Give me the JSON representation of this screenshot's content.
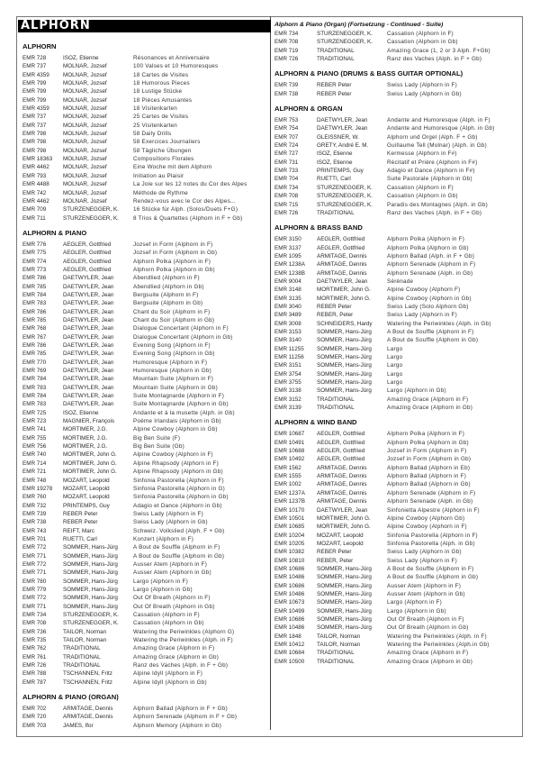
{
  "banner": "ALPHORN",
  "columns": [
    {
      "sections": [
        {
          "title": "ALPHORN",
          "rows": [
            [
              "EMR 728",
              "ISOZ, Etienne",
              "Résonances et Anniversaire"
            ],
            [
              "EMR 737",
              "MOLNAR, Jozsef",
              "100 Valses et 10 Humoresques"
            ],
            [
              "EMR 4359",
              "MOLNAR, Jozsef",
              "18 Cartes de Visites"
            ],
            [
              "EMR 799",
              "MOLNAR, Jozsef",
              "18 Humorous Pieces"
            ],
            [
              "EMR 799",
              "MOLNAR, Jozsef",
              "18 Lustige Stücke"
            ],
            [
              "EMR 799",
              "MOLNAR, Jozsef",
              "18 Pièces Amusantes"
            ],
            [
              "EMR 4359",
              "MOLNAR, Jozsef",
              "18 Visitenkarten"
            ],
            [
              "EMR 737",
              "MOLNAR, Jozsef",
              "25 Cartes de Visites"
            ],
            [
              "EMR 737",
              "MOLNAR, Jozsef",
              "25 Visitenkarten"
            ],
            [
              "EMR 798",
              "MOLNAR, Jozsef",
              "58 Daily Drills"
            ],
            [
              "EMR 798",
              "MOLNAR, Jozsef",
              "58 Exercices Journaliers"
            ],
            [
              "EMR 798",
              "MOLNAR, Jozsef",
              "58 Tägliche Übungen"
            ],
            [
              "EMR 18363",
              "MOLNAR, Jozsef",
              "Compositions Florales"
            ],
            [
              "EMR 4462",
              "MOLNAR, Jozsef",
              "Eine Woche mit dem Alphorn"
            ],
            [
              "EMR 793",
              "MOLNAR, Jozsef",
              "Initiation au Plaisir"
            ],
            [
              "EMR 4488",
              "MOLNAR, Jozsef",
              "La Joie sur les 12 notes du Cor des Alpes"
            ],
            [
              "EMR 742",
              "MOLNAR, Jozsef",
              "Méthode de Rythme"
            ],
            [
              "EMR 4462",
              "MOLNAR, Jozsef",
              "Rendez-vous avec le Cor des Alpes..."
            ],
            [
              "EMR 709",
              "STURZENEGGER, K.",
              "16 Stücke für Alph. (Solos/Duets F+G)"
            ],
            [
              "EMR 711",
              "STURZENEGGER, K.",
              "8 Trios & Quartettes (Alphorn in F + Gb)"
            ]
          ]
        },
        {
          "title": "ALPHORN & PIANO",
          "rows": [
            [
              "EMR 776",
              "AEGLER, Gottfried",
              "Jozsef in Form (Alphorn in F)"
            ],
            [
              "EMR 775",
              "AEGLER, Gottfried",
              "Jozsef in Form (Alphorn in Gb)"
            ],
            [
              "EMR 774",
              "AEGLER, Gottfried",
              "Alphorn Polka (Alphorn in F)"
            ],
            [
              "EMR 773",
              "AEGLER, Gottfried",
              "Alphorn Polka (Alphorn in Gb)"
            ],
            [
              "EMR 786",
              "DAETWYLER, Jean",
              "Abendlied (Alphorn in F)"
            ],
            [
              "EMR 785",
              "DAETWYLER, Jean",
              "Abendlied (Alphorn in Gb)"
            ],
            [
              "EMR 784",
              "DAETWYLER, Jean",
              "Bergsuite (Alphorn in F)"
            ],
            [
              "EMR 783",
              "DAETWYLER, Jean",
              "Bergsuite (Alphorn in Gb)"
            ],
            [
              "EMR 786",
              "DAETWYLER, Jean",
              "Chant du Soir (Alphorn in F)"
            ],
            [
              "EMR 785",
              "DAETWYLER, Jean",
              "Chant du Soir (Alphorn in Gb)"
            ],
            [
              "EMR 768",
              "DAETWYLER, Jean",
              "Dialogue Concertant (Alphorn in F)"
            ],
            [
              "EMR 767",
              "DAETWYLER, Jean",
              "Dialogue Concertant (Alphorn in Gb)"
            ],
            [
              "EMR 786",
              "DAETWYLER, Jean",
              "Evening Song (Alphorn in F)"
            ],
            [
              "EMR 785",
              "DAETWYLER, Jean",
              "Evening Song (Alphorn in Gb)"
            ],
            [
              "EMR 770",
              "DAETWYLER, Jean",
              "Humoresque (Alphorn in F)"
            ],
            [
              "EMR 769",
              "DAETWYLER, Jean",
              "Humoresque (Alphorn in Gb)"
            ],
            [
              "EMR 784",
              "DAETWYLER, Jean",
              "Mountain Suite (Alphorn in F)"
            ],
            [
              "EMR 783",
              "DAETWYLER, Jean",
              "Mountain Suite (Alphorn in Gb)"
            ],
            [
              "EMR 784",
              "DAETWYLER, Jean",
              "Suite Montagnarde (Alphorn in F)"
            ],
            [
              "EMR 783",
              "DAETWYLER, Jean",
              "Suite Montagnarde (Alphorn in Gb)"
            ],
            [
              "EMR 725",
              "ISOZ, Etienne",
              "Andante et à la musette (Alph. in Gb)"
            ],
            [
              "EMR 723",
              "MAGNIER, François",
              "Poème Irlandais (Alphorn in Gb)"
            ],
            [
              "EMR 741",
              "MORTIMER, J.G.",
              "Alpine Cowboy (Alphorn in Gb)"
            ],
            [
              "EMR 755",
              "MORTIMER, J.G.",
              "Big Ben Suite (F)"
            ],
            [
              "EMR 756",
              "MORTIMER, J.G.",
              "Big Ben Suite (Gb)"
            ],
            [
              "EMR 740",
              "MORTIMER, John G.",
              "Alpine Cowboy (Alphorn in F)"
            ],
            [
              "EMR 714",
              "MORTIMER, John G.",
              "Alpine Rhapsody (Alphorn in F)"
            ],
            [
              "EMR 721",
              "MORTIMER, John G.",
              "Alpine Rhapsody (Alphorn in Gb)"
            ],
            [
              "EMR 748",
              "MOZART, Leopold",
              "Sinfonia Pastorella (Alphorn in F)"
            ],
            [
              "EMR 19278",
              "MOZART, Leopold",
              "Sinfonia Pastorella (Alphorn in G)"
            ],
            [
              "EMR 760",
              "MOZART, Leopold",
              "Sinfonia Pastorella (Alphorn in Gb)"
            ],
            [
              "EMR 732",
              "PRINTEMPS, Guy",
              "Adagio et Dance (Alphorn in Gb)"
            ],
            [
              "EMR 739",
              "REBER Peter",
              "Swiss Lady (Alphorn in F)"
            ],
            [
              "EMR 738",
              "REBER Peter",
              "Swiss Lady (Alphorn in Gb)"
            ],
            [
              "EMR 743",
              "REIFT, Marc",
              "Schweiz. Volkslied (Alph. F + Gb)"
            ],
            [
              "EMR 701",
              "RUETTI, Carl",
              "Konzert (Alphorn in F)"
            ],
            [
              "EMR 772",
              "SOMMER, Hans-Jürg",
              "A Bout de Souffle (Alphorn in F)"
            ],
            [
              "EMR 771",
              "SOMMER, Hans-Jürg",
              "A Bout de Souffle (Alphorn in Gb)"
            ],
            [
              "EMR 772",
              "SOMMER, Hans-Jürg",
              "Ausser Atem (Alphorn in F)"
            ],
            [
              "EMR 771",
              "SOMMER, Hans-Jürg",
              "Ausser Atem (Alphorn in Gb)"
            ],
            [
              "EMR 780",
              "SOMMER, Hans-Jürg",
              "Largo (Alphorn in F)"
            ],
            [
              "EMR 779",
              "SOMMER, Hans-Jürg",
              "Largo (Alphorn in Gb)"
            ],
            [
              "EMR 772",
              "SOMMER, Hans-Jürg",
              "Out Of Breath (Alphorn in F)"
            ],
            [
              "EMR 771",
              "SOMMER, Hans-Jürg",
              "Out Of Breath (Alphorn in Gb)"
            ],
            [
              "EMR 734",
              "STURZENEGGER, K.",
              "Cassation (Alphorn in F)"
            ],
            [
              "EMR 708",
              "STURZENEGGER, K.",
              "Cassation (Alphorn in Gb)"
            ],
            [
              "EMR 736",
              "TAILOR, Norman",
              "Watering the Periwinkles (Alphorn G)"
            ],
            [
              "EMR 735",
              "TAILOR, Norman",
              "Watering the Periwinkles (Alph. in F)"
            ],
            [
              "EMR 762",
              "TRADITIONAL",
              "Amazing Grace (Alphorn in F)"
            ],
            [
              "EMR 761",
              "TRADITIONAL",
              "Amazing Grace (Alphorn in Gb)"
            ],
            [
              "EMR 726",
              "TRADITIONAL",
              "Ranz des Vaches (Alph. in F + Gb)"
            ],
            [
              "EMR 788",
              "TSCHANNEN, Fritz",
              "Alpine Idyll (Alphorn in F)"
            ],
            [
              "EMR 787",
              "TSCHANNEN, Fritz",
              "Alpine Idyll (Alphorn in Gb)"
            ]
          ]
        },
        {
          "title": "ALPHORN & PIANO (ORGAN)",
          "rows": [
            [
              "EMR 702",
              "ARMITAGE, Dennis",
              "Alphorn Ballad (Alphorn in F + Gb)"
            ],
            [
              "EMR 720",
              "ARMITAGE, Dennis",
              "Alphorn Serenade (Alphorn in F + Gb)"
            ],
            [
              "EMR 703",
              "JAMES, Ifor",
              "Alphorn Memory (Alphorn in Gb)"
            ]
          ]
        }
      ]
    },
    {
      "sections": [
        {
          "title": "Alphorn & Piano (Organ) (Fortsetzung - Continued - Suite)",
          "italic": true,
          "rows": [
            [
              "EMR 734",
              "STURZENEGGER, K.",
              "Cassation (Alphorn in F)"
            ],
            [
              "EMR 708",
              "STURZENEGGER, K.",
              "Cassation (Alphorn in Gb)"
            ],
            [
              "EMR 719",
              "TRADITIONAL",
              "Amazing Grace (1, 2 or 3 Alph. F+Gb)"
            ],
            [
              "EMR 726",
              "TRADITIONAL",
              "Ranz des Vaches (Alph. in F + Gb)"
            ]
          ]
        },
        {
          "title": "ALPHORN & PIANO (DRUMS & BASS GUITAR OPTIONAL)",
          "rows": [
            [
              "EMR 739",
              "REBER Peter",
              "Swiss Lady (Alphorn in F)"
            ],
            [
              "EMR 738",
              "REBER Peter",
              "Swiss Lady (Alphorn in Gb)"
            ]
          ]
        },
        {
          "title": "ALPHORN & ORGAN",
          "rows": [
            [
              "EMR 753",
              "DAETWYLER, Jean",
              "Andante and Humoresque (Alph. in F)"
            ],
            [
              "EMR 754",
              "DAETWYLER, Jean",
              "Andante and Humoresque (Alph. in Gb)"
            ],
            [
              "EMR 707",
              "GLEISSNER, W.",
              "Alphorn und Orgel (Alph. F + Gb)"
            ],
            [
              "EMR 724",
              "GRETY, André E. M.",
              "Guillaume Tell (Molnar) (Alph. in Gb)"
            ],
            [
              "EMR 727",
              "ISOZ, Etienne",
              "Kermesse (Alphorn in F#)"
            ],
            [
              "EMR 731",
              "ISOZ, Etienne",
              "Récitatif et Prière (Alphorn in F#)"
            ],
            [
              "EMR 733",
              "PRINTEMPS, Guy",
              "Adagio et Dance (Alphorn in F#)"
            ],
            [
              "EMR 704",
              "RUETTI, Carl",
              "Suite Pastorale (Alphorn in Gb)"
            ],
            [
              "EMR 734",
              "STURZENEGGER, K.",
              "Cassation (Alphorn in F)"
            ],
            [
              "EMR 708",
              "STURZENEGGER, K.",
              "Cassation (Alphorn in Gb)"
            ],
            [
              "EMR 715",
              "STURZENEGGER, K.",
              "Paradis des Montagnes (Alph. in Gb)"
            ],
            [
              "EMR 726",
              "TRADITIONAL",
              "Ranz des Vaches (Alph. in F + Gb)"
            ]
          ]
        },
        {
          "title": "ALPHORN & BRASS BAND",
          "rows": [
            [
              "EMR 3150",
              "AEGLER, Gottfried",
              "Alphorn Polka (Alphorn in F)"
            ],
            [
              "EMR 3137",
              "AEGLER, Gottfried",
              "Alphorn Polka (Alphorn in Gb)"
            ],
            [
              "EMR 1095",
              "ARMITAGE, Dennis",
              "Alphorn Ballad (Alph. in F + Gb)"
            ],
            [
              "EMR 1238A",
              "ARMITAGE, Dennis",
              "Alphorn Serenade (Alphorn in F)"
            ],
            [
              "EMR 1238B",
              "ARMITAGE, Dennis",
              "Alphorn Serenade (Alph. in Gb)"
            ],
            [
              "EMR 9004",
              "DAETWYLER, Jean",
              "Sérénade"
            ],
            [
              "EMR 3148",
              "MORTIMER, John G.",
              "Alpine Cowboy (Alphorn F)"
            ],
            [
              "EMR 3135",
              "MORTIMER, John G.",
              "Alpine Cowboy (Alphorn in Gb)"
            ],
            [
              "EMR 3040",
              "REBER Peter",
              "Swiss Lady (Solo Alphorn Gb)"
            ],
            [
              "EMR 3489",
              "REBER, Peter",
              "Swiss Lady (Alphorn in F)"
            ],
            [
              "EMR 3008",
              "SCHNEIDERS, Hardy",
              "Watering the Periwinkles (Alph. in Gb)"
            ],
            [
              "EMR 3153",
              "SOMMER, Hans-Jürg",
              "A Bout de Souffle (Alphorn in F)"
            ],
            [
              "EMR 3140",
              "SOMMER, Hans-Jürg",
              "A Bout de Souffle (Alphorn in Gb)"
            ],
            [
              "EMR 11255",
              "SOMMER, Hans-Jürg",
              "Largo"
            ],
            [
              "EMR 11256",
              "SOMMER, Hans-Jürg",
              "Largo"
            ],
            [
              "EMR 3151",
              "SOMMER, Hans-Jürg",
              "Largo"
            ],
            [
              "EMR 3754",
              "SOMMER, Hans-Jürg",
              "Largo"
            ],
            [
              "EMR 3755",
              "SOMMER, Hans-Jürg",
              "Largo"
            ],
            [
              "EMR 3138",
              "SOMMER, Hans-Jürg",
              "Largo (Alphorn in Gb)"
            ],
            [
              "EMR 3152",
              "TRADITIONAL",
              "Amazing Grace (Alphorn in F)"
            ],
            [
              "EMR 3139",
              "TRADITIONAL",
              "Amazing Grace (Alphorn in Gb)"
            ]
          ]
        },
        {
          "title": "ALPHORN & WIND BAND",
          "rows": [
            [
              "EMR 10687",
              "AEGLER, Gottfried",
              "Alphorn Polka (Alphorn in F)"
            ],
            [
              "EMR 10491",
              "AEGLER, Gottfried",
              "Alphorn Polka (Alphorn in Gb)"
            ],
            [
              "EMR 10688",
              "AEGLER, Gottfried",
              "Jozsef in Form (Alphorn in F)"
            ],
            [
              "EMR 10492",
              "AEGLER, Gottfried",
              "Jozsef in Form (Alphorn in Gb)"
            ],
            [
              "EMR 1562",
              "ARMITAGE, Dennis",
              "Alphorn Ballad (Alphorn in Eb)"
            ],
            [
              "EMR 1555",
              "ARMITAGE, Dennis",
              "Alphorn Ballad (Alphorn in F)"
            ],
            [
              "EMR 1002",
              "ARMITAGE, Dennis",
              "Alphorn Ballad (Alphorn in Gb)"
            ],
            [
              "EMR 1237A",
              "ARMITAGE, Dennis",
              "Alphorn Serenade (Alphorn in F)"
            ],
            [
              "EMR 1237B",
              "ARMITAGE, Dennis",
              "Alphorn Serenade (Alph. in Gb)"
            ],
            [
              "EMR 10170",
              "DAETWYLER, Jean",
              "Sinfonietta Alpestre (Alphorn in F)"
            ],
            [
              "EMR 10501",
              "MORTIMER, John G.",
              "Alpine Cowboy (Alphorn Gb)"
            ],
            [
              "EMR 10685",
              "MORTIMER, John G.",
              "Alpine Cowboy (Alphorn in F)"
            ],
            [
              "EMR 10204",
              "MOZART, Leopold",
              "Sinfonia Pastorella (Alphorn in F)"
            ],
            [
              "EMR 10205",
              "MOZART, Leopold",
              "Sinfonia Pastorella (Alph. in Gb)"
            ],
            [
              "EMR 10382",
              "REBER Peter",
              "Swiss Lady (Alphorn in Gb)"
            ],
            [
              "EMR 10810",
              "REBER, Peter",
              "Swiss Lady (Alphorn in F)"
            ],
            [
              "EMR 10686",
              "SOMMER, Hans-Jürg",
              "A Bout de Souffle (Alphorn in F)"
            ],
            [
              "EMR 10486",
              "SOMMER, Hans-Jürg",
              "A Bout de Souffle (Alphorn in Gb)"
            ],
            [
              "EMR 10686",
              "SOMMER, Hans-Jürg",
              "Ausser Atem (Alphorn in F)"
            ],
            [
              "EMR 10486",
              "SOMMER, Hans-Jürg",
              "Ausser Atem (Alphorn in Gb)"
            ],
            [
              "EMR 10673",
              "SOMMER, Hans-Jürg",
              "Largo (Alphorn in F)"
            ],
            [
              "EMR 10499",
              "SOMMER, Hans-Jürg",
              "Largo (Alphorn in Gb)"
            ],
            [
              "EMR 10686",
              "SOMMER, Hans-Jürg",
              "Out Of Breath (Alphorn in F)"
            ],
            [
              "EMR 10486",
              "SOMMER, Hans-Jürg",
              "Out Of Breath (Alphorn in Gb)"
            ],
            [
              "EMR 1848",
              "TAILOR, Norman",
              "Watering the Periwinkles (Alph. in F)"
            ],
            [
              "EMR 10412",
              "TAILOR, Norman",
              "Watering the Periwinkles (Alph.in Gb)"
            ],
            [
              "EMR 10684",
              "TRADITIONAL",
              "Amazing Grace (Alphorn in F)"
            ],
            [
              "EMR 10500",
              "TRADITIONAL",
              "Amazing Grace (Alphorn in Gb)"
            ]
          ]
        }
      ]
    }
  ]
}
